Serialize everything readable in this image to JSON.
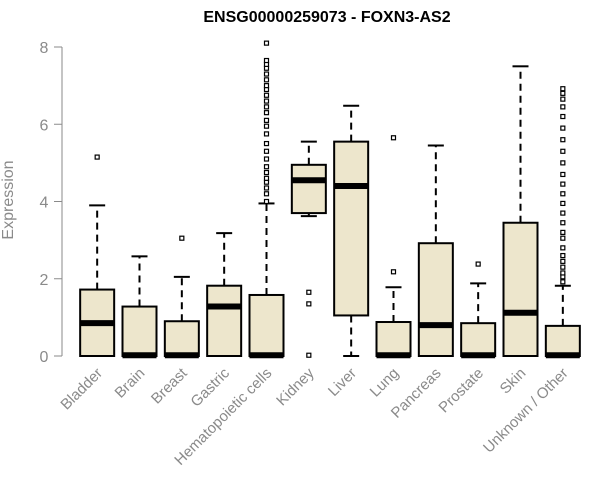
{
  "chart_data": {
    "type": "box",
    "title": "ENSG00000259073 - FOXN3-AS2",
    "ylabel": "Expression",
    "xlabel": "",
    "ylim": [
      0,
      8
    ],
    "yticks": [
      0,
      2,
      4,
      6,
      8
    ],
    "grid": false,
    "colors": {
      "box_fill": "#ede6cc",
      "stroke": "#000000",
      "axis": "#8a8a8a"
    },
    "categories": [
      "Bladder",
      "Brain",
      "Breast",
      "Gastric",
      "Hematopoietic cells",
      "Kidney",
      "Liver",
      "Lung",
      "Pancreas",
      "Prostate",
      "Skin",
      "Unknown / Other"
    ],
    "boxes": [
      {
        "min": 0,
        "q1": 0,
        "median": 0.85,
        "q3": 1.72,
        "max": 3.9,
        "outliers": [
          5.15
        ]
      },
      {
        "min": 0,
        "q1": 0,
        "median": 0.02,
        "q3": 1.28,
        "max": 2.58,
        "outliers": []
      },
      {
        "min": 0,
        "q1": 0,
        "median": 0.02,
        "q3": 0.9,
        "max": 2.05,
        "outliers": [
          3.05
        ]
      },
      {
        "min": 0,
        "q1": 0,
        "median": 1.28,
        "q3": 1.82,
        "max": 3.18,
        "outliers": []
      },
      {
        "min": 0,
        "q1": 0,
        "median": 0.02,
        "q3": 1.58,
        "max": 3.95,
        "outliers": [
          4.0,
          4.2,
          4.35,
          4.5,
          4.6,
          4.75,
          4.9,
          5.1,
          5.3,
          5.5,
          5.75,
          5.95,
          6.1,
          6.3,
          6.45,
          6.6,
          6.75,
          6.9,
          7.0,
          7.15,
          7.3,
          7.45,
          7.55,
          7.65,
          8.1
        ]
      },
      {
        "min": 3.62,
        "q1": 3.7,
        "median": 4.55,
        "q3": 4.95,
        "max": 5.55,
        "outliers": [
          1.65,
          1.35,
          0.02
        ]
      },
      {
        "min": 0,
        "q1": 1.05,
        "median": 4.4,
        "q3": 5.55,
        "max": 6.48,
        "outliers": []
      },
      {
        "min": 0,
        "q1": 0,
        "median": 0.02,
        "q3": 0.88,
        "max": 1.78,
        "outliers": [
          2.18,
          5.65
        ]
      },
      {
        "min": 0,
        "q1": 0,
        "median": 0.8,
        "q3": 2.92,
        "max": 5.45,
        "outliers": []
      },
      {
        "min": 0,
        "q1": 0,
        "median": 0.02,
        "q3": 0.85,
        "max": 1.88,
        "outliers": [
          2.38
        ]
      },
      {
        "min": 0,
        "q1": 0,
        "median": 1.12,
        "q3": 3.45,
        "max": 7.5,
        "outliers": []
      },
      {
        "min": 0,
        "q1": 0,
        "median": 0.02,
        "q3": 0.78,
        "max": 1.82,
        "outliers": [
          1.92,
          2.05,
          2.15,
          2.3,
          2.45,
          2.6,
          2.8,
          3.05,
          3.2,
          3.45,
          3.7,
          3.95,
          4.2,
          4.45,
          4.7,
          5.0,
          5.3,
          5.6,
          5.9,
          6.2,
          6.45,
          6.65,
          6.8,
          6.92
        ]
      }
    ]
  }
}
